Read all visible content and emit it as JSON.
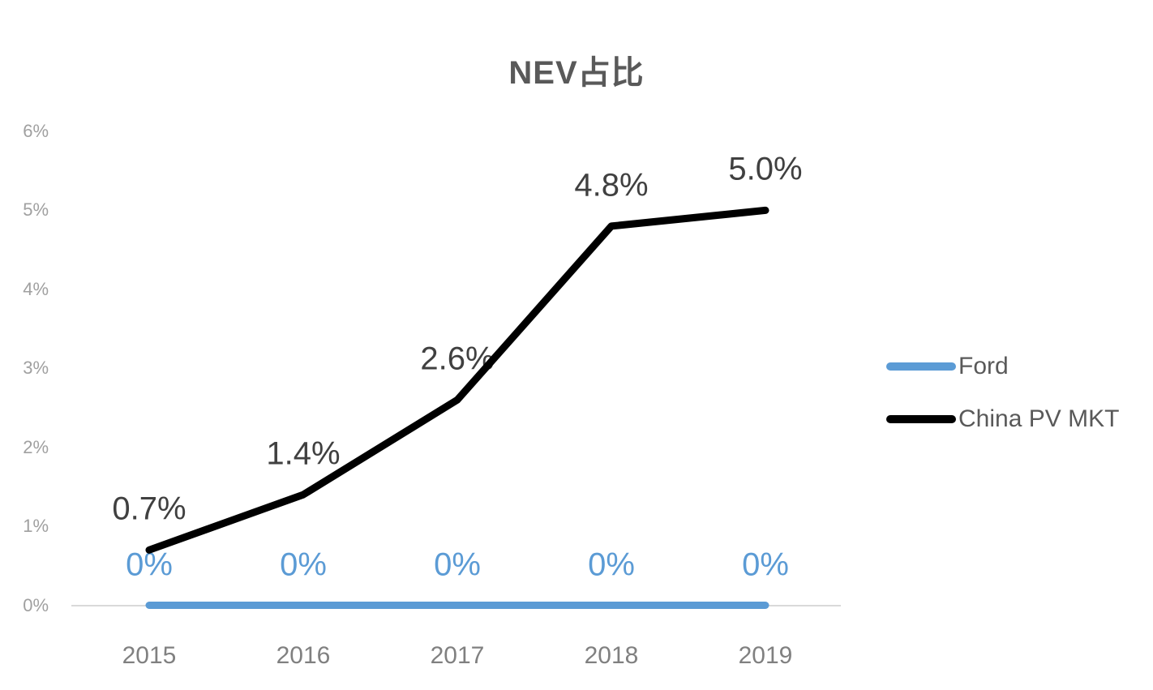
{
  "chart_data": {
    "type": "line",
    "title": "NEV占比",
    "title_color": "#595959",
    "categories": [
      "2015",
      "2016",
      "2017",
      "2018",
      "2019"
    ],
    "series": [
      {
        "name": "Ford",
        "color": "#5B9BD5",
        "values": [
          0,
          0,
          0,
          0,
          0
        ],
        "point_labels": [
          "0%",
          "0%",
          "0%",
          "0%",
          "0%"
        ],
        "label_color": "#5B9BD5"
      },
      {
        "name": "China PV MKT",
        "color": "#000000",
        "values": [
          0.7,
          1.4,
          2.6,
          4.8,
          5.0
        ],
        "point_labels": [
          "0.7%",
          "1.4%",
          "2.6%",
          "4.8%",
          "5.0%"
        ],
        "label_color": "#404040"
      }
    ],
    "ylim": [
      0,
      6
    ],
    "ytick_labels": [
      "0%",
      "1%",
      "2%",
      "3%",
      "4%",
      "5%",
      "6%"
    ],
    "ytick_color": "#A0A0A0",
    "xtick_color": "#808080",
    "axis_line_color": "#D9D9D9",
    "grid": false,
    "legend_position": "right"
  },
  "legend": {
    "text_color": "#595959",
    "items": [
      {
        "label": "Ford",
        "color": "#5B9BD5"
      },
      {
        "label": "China PV MKT",
        "color": "#000000"
      }
    ]
  }
}
